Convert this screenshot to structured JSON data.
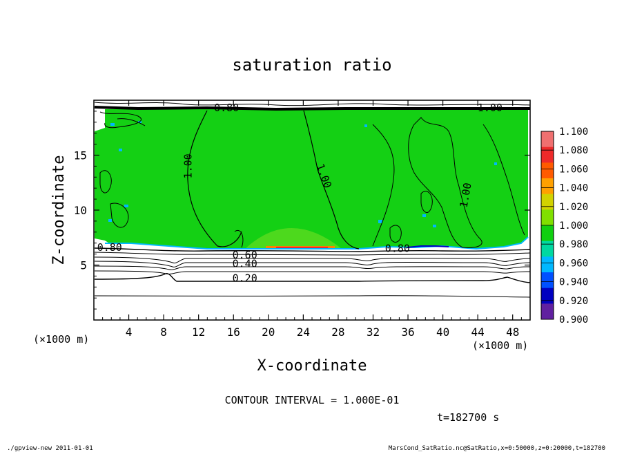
{
  "chart_data": {
    "type": "contour",
    "title": "saturation ratio",
    "xlabel": "X-coordinate",
    "ylabel": "Z-coordinate",
    "x_unit": "(×1000 m)",
    "y_unit": "(×1000 m)",
    "x_ticks": [
      4,
      8,
      12,
      16,
      20,
      24,
      28,
      32,
      36,
      40,
      44,
      48
    ],
    "y_ticks": [
      5,
      10,
      15
    ],
    "xlim": [
      0,
      50
    ],
    "ylim": [
      0,
      20
    ],
    "contour_labels": [
      {
        "text": "1.00",
        "x": 11.2,
        "z": 14.0,
        "rotate": -90
      },
      {
        "text": "1.00",
        "x": 26.0,
        "z": 13.0,
        "rotate": 70
      },
      {
        "text": "1.00",
        "x": 43.0,
        "z": 11.3,
        "rotate": -80
      },
      {
        "text": "1.00",
        "x": 45.4,
        "z": 19.0,
        "rotate": 0
      },
      {
        "text": "0.80",
        "x": 15.2,
        "z": 19.0,
        "rotate": 0
      },
      {
        "text": "0.80",
        "x": 1.8,
        "z": 6.3,
        "rotate": 0
      },
      {
        "text": "0.80",
        "x": 34.8,
        "z": 6.2,
        "rotate": 0
      },
      {
        "text": "0.60",
        "x": 17.3,
        "z": 5.6,
        "rotate": 0
      },
      {
        "text": "0.40",
        "x": 17.3,
        "z": 4.8,
        "rotate": 0
      },
      {
        "text": "0.20",
        "x": 17.3,
        "z": 3.5,
        "rotate": 0
      }
    ],
    "colorbar": {
      "labels": [
        "1.100",
        "1.080",
        "1.060",
        "1.040",
        "1.020",
        "1.000",
        "0.980",
        "0.960",
        "0.940",
        "0.920",
        "0.900"
      ],
      "colors": [
        "#f07070",
        "#ee2a2a",
        "#ff5a00",
        "#ffa000",
        "#d2d200",
        "#80e000",
        "#10d010",
        "#00d8a0",
        "#00b8ff",
        "#0050ff",
        "#0000c0",
        "#6020a0"
      ]
    },
    "contour_interval": "CONTOUR INTERVAL = 1.000E-01",
    "time": "t=182700 s"
  },
  "footer": {
    "left": "./gpview-new  2011-01-01",
    "right": "MarsCond_SatRatio.nc@SatRatio,x=0:50000,z=0:20000,t=182700"
  }
}
